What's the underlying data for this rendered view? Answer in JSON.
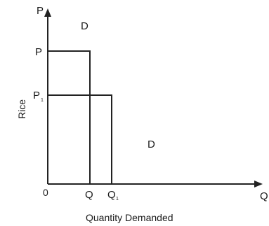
{
  "labels": {
    "y_axis_top": "P",
    "x_axis_right": "Q",
    "origin": "0",
    "price_level_1": "P",
    "price_level_2_main": "P",
    "price_level_2_sub": "1",
    "demand_top": "D",
    "demand_bottom": "D",
    "qty_level_1": "Q",
    "qty_level_2_main": "Q",
    "qty_level_2_sub": "1",
    "x_axis_title": "Quantity Demanded",
    "y_axis_title": "Rice"
  }
}
